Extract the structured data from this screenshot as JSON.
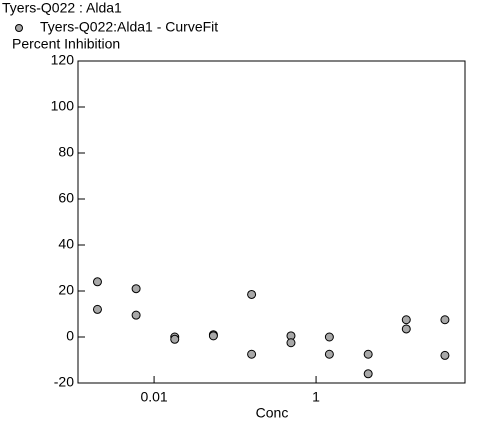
{
  "chart_data": {
    "type": "scatter",
    "title": "Tyers-Q022  :  Alda1",
    "ylabel": "Percent  Inhibition",
    "xlabel": "Conc",
    "xscale": "log",
    "series": [
      {
        "name": "Tyers-Q022:Alda1 - CurveFit",
        "color": "#a8a8a8",
        "x": [
          0.002,
          0.002,
          0.006,
          0.006,
          0.018,
          0.018,
          0.054,
          0.054,
          0.16,
          0.16,
          0.49,
          0.49,
          1.46,
          1.46,
          4.4,
          4.4,
          13,
          13,
          39,
          39
        ],
        "values": [
          24,
          12,
          21,
          9.5,
          0,
          -1,
          1,
          0.5,
          18.5,
          -7.5,
          0.5,
          -2.5,
          0,
          -7.5,
          -7.5,
          -16,
          7.5,
          3.5,
          7.5,
          -8
        ]
      }
    ],
    "xlim": [
      0.00115,
      69
    ],
    "xticks": [
      0.01,
      1
    ],
    "ylim": [
      -20,
      120
    ],
    "yticks": [
      -20,
      0,
      20,
      40,
      60,
      80,
      100,
      120
    ]
  }
}
